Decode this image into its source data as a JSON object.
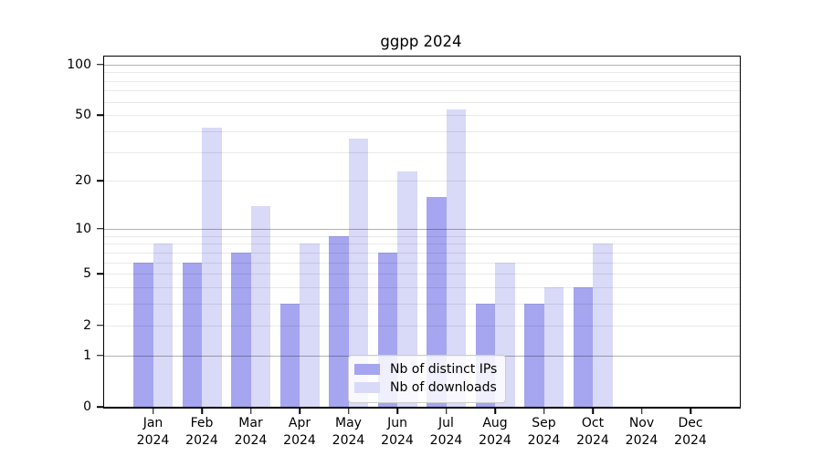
{
  "chart_data": {
    "type": "bar",
    "title": "ggpp 2024",
    "categories": [
      "Jan",
      "Feb",
      "Mar",
      "Apr",
      "May",
      "Jun",
      "Jul",
      "Aug",
      "Sep",
      "Oct",
      "Nov",
      "Dec"
    ],
    "category_year": "2024",
    "series": [
      {
        "name": "Nb of distinct IPs",
        "color": "#a5a5f0",
        "values": [
          6,
          6,
          7,
          3,
          9,
          7,
          16,
          3,
          3,
          4,
          0,
          0
        ]
      },
      {
        "name": "Nb of downloads",
        "color": "#d9d9f8",
        "values": [
          8,
          42,
          14,
          8,
          36,
          23,
          54,
          6,
          4,
          8,
          0,
          0
        ]
      }
    ],
    "y_scale": "log10(1+v)",
    "y_axis": {
      "tick_values": [
        0,
        1,
        2,
        5,
        10,
        20,
        50,
        100
      ],
      "tick_labels": [
        "0",
        "1",
        "2",
        "5",
        "10",
        "20",
        "50",
        "100"
      ],
      "max": 111,
      "major_gridlines": [
        1,
        10,
        100
      ],
      "minor_gridlines": [
        2,
        3,
        4,
        5,
        6,
        7,
        8,
        9,
        20,
        30,
        40,
        50,
        60,
        70,
        80,
        90
      ]
    },
    "legend": {
      "position": "bottom-center",
      "entries": [
        "Nb of distinct IPs",
        "Nb of downloads"
      ]
    },
    "grid": true,
    "colors": {
      "frame": "#000000",
      "grid_major": "#b3b3b3",
      "grid_minor": "#e8e8e8",
      "background": "#ffffff"
    }
  }
}
